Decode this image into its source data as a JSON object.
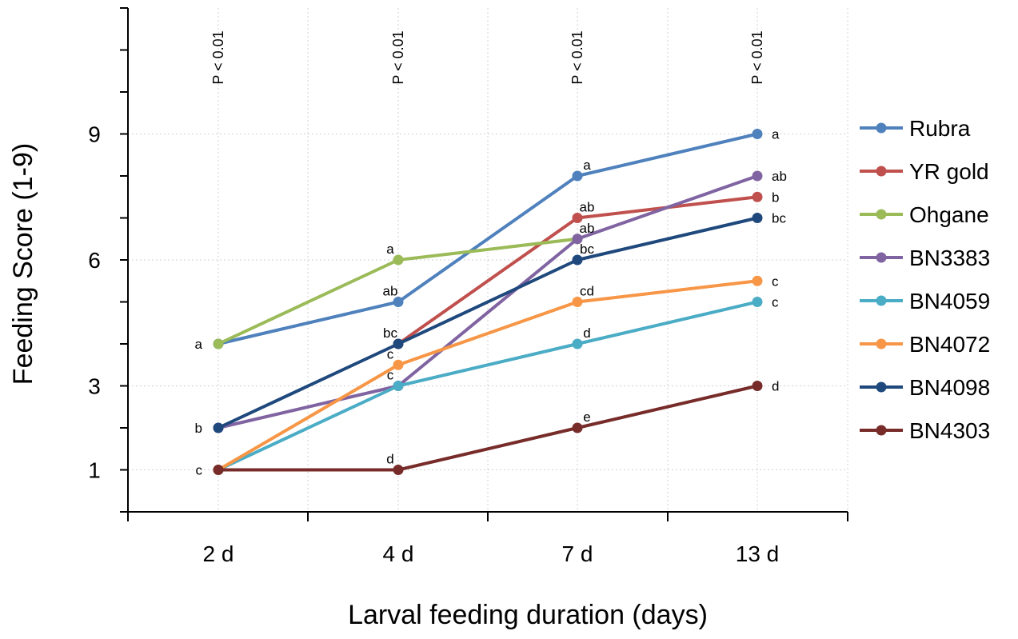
{
  "chart_data": {
    "type": "line",
    "title": "",
    "xlabel": "Larval feeding duration (days)",
    "ylabel": "Feeding Score (1-9)",
    "categories": [
      "2 d",
      "4 d",
      "7 d",
      "13 d"
    ],
    "ylim": [
      0,
      12
    ],
    "yticks": [
      1,
      3,
      6,
      9
    ],
    "grid": true,
    "legend_position": "right",
    "p_values": [
      "P < 0.01",
      "P < 0.01",
      "P < 0.01",
      "P < 0.01"
    ],
    "series": [
      {
        "name": "Rubra",
        "color": "#4f81bd",
        "values": [
          4,
          5,
          8,
          9
        ],
        "letters": [
          "",
          "ab",
          "a",
          "a"
        ]
      },
      {
        "name": "YR gold",
        "color": "#c0504d",
        "values": [
          null,
          4,
          7,
          7.5
        ],
        "letters": [
          "",
          "",
          "ab",
          "b"
        ]
      },
      {
        "name": "Ohgane",
        "color": "#9bbb59",
        "values": [
          4,
          6,
          6.5,
          null
        ],
        "letters": [
          "a",
          "a",
          "",
          ""
        ]
      },
      {
        "name": "BN3383",
        "color": "#8064a2",
        "values": [
          2,
          3,
          6.5,
          8
        ],
        "letters": [
          "",
          "",
          "ab",
          "ab"
        ]
      },
      {
        "name": "BN4059",
        "color": "#4bacc6",
        "values": [
          1,
          3,
          4,
          5
        ],
        "letters": [
          "",
          "c",
          "d",
          "c"
        ]
      },
      {
        "name": "BN4072",
        "color": "#f79646",
        "values": [
          1,
          3.5,
          5,
          5.5
        ],
        "letters": [
          "",
          "c",
          "cd",
          "c"
        ]
      },
      {
        "name": "BN4098",
        "color": "#1f497d",
        "values": [
          2,
          4,
          6,
          7
        ],
        "letters": [
          "b",
          "bc",
          "bc",
          "bc"
        ]
      },
      {
        "name": "BN4303",
        "color": "#772c2a",
        "values": [
          1,
          1,
          2,
          3
        ],
        "letters": [
          "c",
          "d",
          "e",
          "d"
        ]
      }
    ]
  }
}
